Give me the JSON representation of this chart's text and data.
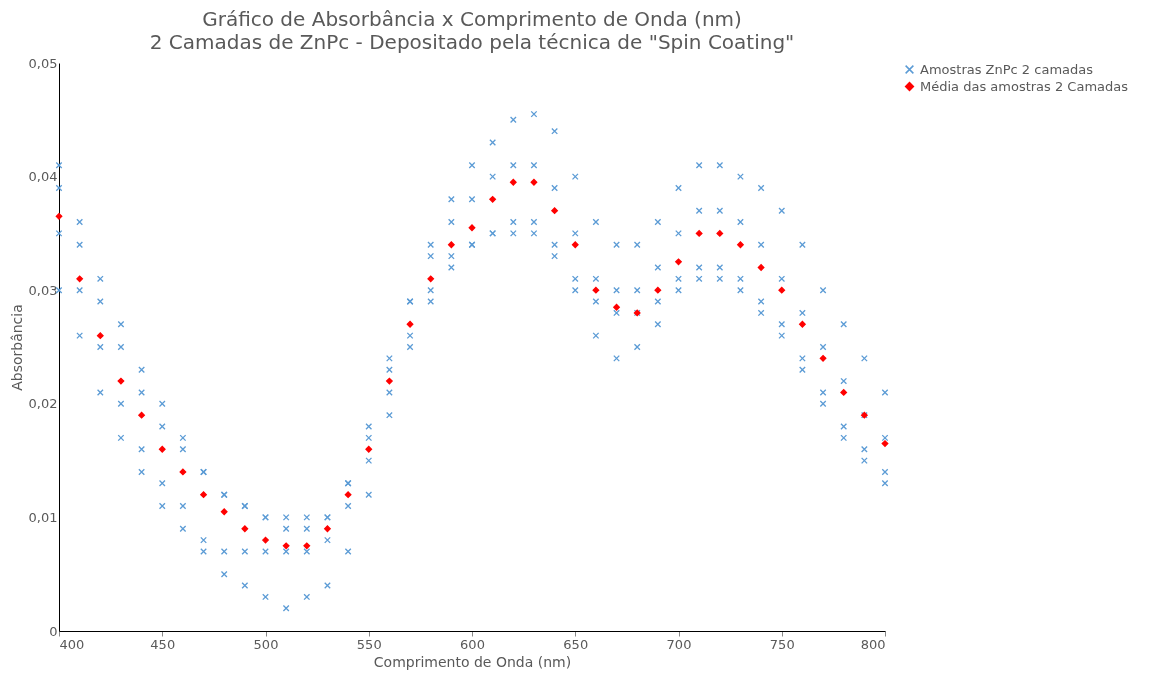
{
  "chart_data": {
    "type": "scatter",
    "title": "Gráfico de Absorbância x Comprimento de Onda (nm)",
    "subtitle": "2 Camadas de ZnPc - Depositado pela técnica de \"Spin Coating\"",
    "xlabel": "Comprimento de Onda (nm)",
    "ylabel": "Absorbância",
    "xlim": [
      400,
      800
    ],
    "xticks": [
      400,
      450,
      500,
      550,
      600,
      650,
      700,
      750,
      800
    ],
    "ylim": [
      0,
      0.05
    ],
    "yticks": [
      0,
      {
        "value": 0.01,
        "label": "0,01"
      },
      {
        "value": 0.02,
        "label": "0,02"
      },
      {
        "value": 0.03,
        "label": "0,03"
      },
      {
        "value": 0.04,
        "label": "0,04"
      },
      {
        "value": 0.05,
        "label": "0,05"
      }
    ],
    "grid": false,
    "legend": "right",
    "series": [
      {
        "name": "Amostras ZnPc 2 camadas",
        "color": "#5b9bd5",
        "marker": "cross",
        "x": [
          400,
          410,
          420,
          430,
          440,
          450,
          460,
          470,
          480,
          490,
          500,
          510,
          520,
          530,
          540,
          550,
          560,
          570,
          580,
          590,
          600,
          610,
          620,
          630,
          640,
          650,
          660,
          670,
          680,
          690,
          700,
          710,
          720,
          730,
          740,
          750,
          760,
          770,
          780,
          790,
          800,
          400,
          410,
          420,
          430,
          440,
          450,
          460,
          470,
          480,
          490,
          500,
          510,
          520,
          530,
          540,
          550,
          560,
          570,
          580,
          590,
          600,
          610,
          620,
          630,
          640,
          650,
          660,
          670,
          680,
          690,
          700,
          710,
          720,
          730,
          740,
          750,
          760,
          770,
          780,
          790,
          800,
          400,
          410,
          420,
          430,
          440,
          450,
          460,
          470,
          480,
          490,
          500,
          510,
          520,
          530,
          540,
          550,
          560,
          570,
          580,
          590,
          600,
          610,
          620,
          630,
          640,
          650,
          660,
          670,
          680,
          690,
          700,
          710,
          720,
          730,
          740,
          750,
          760,
          770,
          780,
          790,
          800,
          400,
          410,
          420,
          430,
          440,
          450,
          460,
          470,
          480,
          490,
          500,
          510,
          520,
          530,
          540,
          550,
          560,
          570,
          580,
          590,
          600,
          610,
          620,
          630,
          640,
          650,
          660,
          670,
          680,
          690,
          700,
          710,
          720,
          730,
          740,
          750,
          760,
          770,
          780,
          790,
          800
        ],
        "values": [
          0.041,
          0.036,
          0.031,
          0.027,
          0.023,
          0.02,
          0.017,
          0.014,
          0.012,
          0.011,
          0.01,
          0.01,
          0.01,
          0.01,
          0.013,
          0.017,
          0.023,
          0.029,
          0.034,
          0.038,
          0.041,
          0.043,
          0.045,
          0.0455,
          0.044,
          0.04,
          0.036,
          0.034,
          0.034,
          0.036,
          0.039,
          0.041,
          0.041,
          0.04,
          0.039,
          0.037,
          0.034,
          0.03,
          0.027,
          0.024,
          0.021,
          0.039,
          0.034,
          0.029,
          0.025,
          0.021,
          0.018,
          0.016,
          0.014,
          0.012,
          0.011,
          0.01,
          0.009,
          0.009,
          0.01,
          0.013,
          0.018,
          0.024,
          0.029,
          0.033,
          0.036,
          0.038,
          0.04,
          0.041,
          0.041,
          0.039,
          0.035,
          0.031,
          0.03,
          0.03,
          0.032,
          0.035,
          0.037,
          0.037,
          0.036,
          0.034,
          0.031,
          0.028,
          0.025,
          0.022,
          0.019,
          0.017,
          0.035,
          0.03,
          0.025,
          0.02,
          0.016,
          0.013,
          0.011,
          0.008,
          0.007,
          0.007,
          0.007,
          0.007,
          0.007,
          0.008,
          0.011,
          0.015,
          0.021,
          0.026,
          0.03,
          0.033,
          0.034,
          0.035,
          0.036,
          0.036,
          0.034,
          0.031,
          0.029,
          0.028,
          0.028,
          0.029,
          0.031,
          0.032,
          0.032,
          0.031,
          0.029,
          0.027,
          0.024,
          0.021,
          0.018,
          0.016,
          0.014,
          0.03,
          0.026,
          0.021,
          0.017,
          0.014,
          0.011,
          0.009,
          0.007,
          0.005,
          0.004,
          0.003,
          0.002,
          0.003,
          0.004,
          0.007,
          0.012,
          0.019,
          0.025,
          0.029,
          0.032,
          0.034,
          0.035,
          0.035,
          0.035,
          0.033,
          0.03,
          0.026,
          0.024,
          0.025,
          0.027,
          0.03,
          0.031,
          0.031,
          0.03,
          0.028,
          0.026,
          0.023,
          0.02,
          0.017,
          0.015,
          0.013
        ]
      },
      {
        "name": "Média das amostras 2 Camadas",
        "color": "#ff0000",
        "marker": "diamond",
        "x": [
          400,
          410,
          420,
          430,
          440,
          450,
          460,
          470,
          480,
          490,
          500,
          510,
          520,
          530,
          540,
          550,
          560,
          570,
          580,
          590,
          600,
          610,
          620,
          630,
          640,
          650,
          660,
          670,
          680,
          690,
          700,
          710,
          720,
          730,
          740,
          750,
          760,
          770,
          780,
          790,
          800
        ],
        "values": [
          0.0365,
          0.031,
          0.026,
          0.022,
          0.019,
          0.016,
          0.014,
          0.012,
          0.0105,
          0.009,
          0.008,
          0.0075,
          0.0075,
          0.009,
          0.012,
          0.016,
          0.022,
          0.027,
          0.031,
          0.034,
          0.0355,
          0.038,
          0.0395,
          0.0395,
          0.037,
          0.034,
          0.03,
          0.0285,
          0.028,
          0.03,
          0.0325,
          0.035,
          0.035,
          0.034,
          0.032,
          0.03,
          0.027,
          0.024,
          0.021,
          0.019,
          0.0165
        ]
      }
    ]
  }
}
